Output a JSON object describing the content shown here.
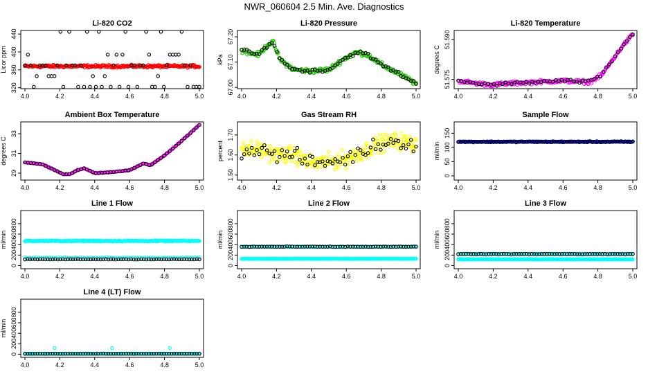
{
  "page_title": "NWR_060604  2.5 Min. Ave. Diagnostics",
  "colors": {
    "red": "#ff0000",
    "green": "#22cc00",
    "magenta": "#ff00ff",
    "yellow": "#ffff00",
    "blue": "#0000cc",
    "cyan": "#00ffff",
    "black": "#000000"
  },
  "chart_data": [
    {
      "type": "scatter",
      "title": "Li-820 CO2",
      "ylabel": "Licor ppm",
      "xlim": [
        4.0,
        5.0
      ],
      "ylim": [
        318,
        448
      ],
      "xticks": [
        "4.0",
        "4.2",
        "4.4",
        "4.6",
        "4.8",
        "5.0"
      ],
      "yticks": [
        {
          "v": 320,
          "label": "320"
        },
        {
          "v": 360,
          "label": "360"
        },
        {
          "v": 400,
          "label": "400"
        },
        {
          "v": 440,
          "label": "440"
        }
      ],
      "series": [
        {
          "name": "CO2 (red)",
          "color": "red",
          "gen": "band",
          "y": 368,
          "noise": 2.5,
          "n": 240
        },
        {
          "name": "CO2 (black)",
          "color": "black",
          "gen": "levels",
          "levels": [
            322,
            346,
            370,
            394,
            445
          ],
          "n": 60
        }
      ]
    },
    {
      "type": "scatter",
      "title": "Li-820 Pressure",
      "ylabel": "kPa",
      "xlim": [
        4.0,
        5.0
      ],
      "ylim": [
        66.995,
        67.225
      ],
      "xticks": [
        "4.0",
        "4.2",
        "4.4",
        "4.6",
        "4.8",
        "5.0"
      ],
      "yticks": [
        {
          "v": 67.0,
          "label": "67.00"
        },
        {
          "v": 67.1,
          "label": "67.10"
        },
        {
          "v": 67.2,
          "label": "67.20"
        }
      ],
      "series": [
        {
          "name": "Pressure (green)",
          "color": "green",
          "gen": "curve",
          "noise": 0.008,
          "n": 220,
          "knots": [
            [
              4.0,
              67.15
            ],
            [
              4.05,
              67.135
            ],
            [
              4.1,
              67.13
            ],
            [
              4.15,
              67.17
            ],
            [
              4.18,
              67.18
            ],
            [
              4.22,
              67.11
            ],
            [
              4.3,
              67.07
            ],
            [
              4.4,
              67.065
            ],
            [
              4.5,
              67.07
            ],
            [
              4.58,
              67.11
            ],
            [
              4.66,
              67.14
            ],
            [
              4.72,
              67.13
            ],
            [
              4.8,
              67.09
            ],
            [
              4.9,
              67.055
            ],
            [
              5.0,
              67.015
            ]
          ]
        },
        {
          "name": "Pressure (black)",
          "color": "black",
          "gen": "curve",
          "noise": 0.006,
          "n": 70,
          "knots": [
            [
              4.0,
              67.15
            ],
            [
              4.05,
              67.135
            ],
            [
              4.1,
              67.13
            ],
            [
              4.15,
              67.17
            ],
            [
              4.18,
              67.18
            ],
            [
              4.22,
              67.11
            ],
            [
              4.3,
              67.07
            ],
            [
              4.4,
              67.065
            ],
            [
              4.5,
              67.07
            ],
            [
              4.58,
              67.11
            ],
            [
              4.66,
              67.14
            ],
            [
              4.72,
              67.13
            ],
            [
              4.8,
              67.09
            ],
            [
              4.9,
              67.055
            ],
            [
              5.0,
              67.015
            ]
          ]
        }
      ]
    },
    {
      "type": "scatter",
      "title": "Li-820 Temperature",
      "ylabel": "degrees C",
      "xlim": [
        4.0,
        5.0
      ],
      "ylim": [
        51.5715,
        51.5935
      ],
      "xticks": [
        "4.0",
        "4.2",
        "4.4",
        "4.6",
        "4.8",
        "5.0"
      ],
      "yticks": [
        {
          "v": 51.575,
          "label": "51.575"
        },
        {
          "v": 51.59,
          "label": "51.590"
        }
      ],
      "series": [
        {
          "name": "Temperature (magenta)",
          "color": "magenta",
          "gen": "curve",
          "noise": 0.0006,
          "n": 220,
          "knots": [
            [
              4.0,
              51.5745
            ],
            [
              4.1,
              51.5735
            ],
            [
              4.2,
              51.573
            ],
            [
              4.3,
              51.5735
            ],
            [
              4.45,
              51.574
            ],
            [
              4.6,
              51.5745
            ],
            [
              4.75,
              51.574
            ],
            [
              4.82,
              51.5765
            ],
            [
              4.88,
              51.582
            ],
            [
              4.94,
              51.5875
            ],
            [
              5.0,
              51.592
            ]
          ]
        },
        {
          "name": "Temperature (black)",
          "color": "black",
          "gen": "curve",
          "noise": 0.0005,
          "n": 60,
          "knots": [
            [
              4.0,
              51.5745
            ],
            [
              4.1,
              51.5735
            ],
            [
              4.2,
              51.573
            ],
            [
              4.3,
              51.5735
            ],
            [
              4.45,
              51.574
            ],
            [
              4.6,
              51.5745
            ],
            [
              4.75,
              51.574
            ],
            [
              4.82,
              51.5765
            ],
            [
              4.88,
              51.582
            ],
            [
              4.94,
              51.5875
            ],
            [
              5.0,
              51.592
            ]
          ]
        }
      ]
    },
    {
      "type": "scatter",
      "title": "Ambient Box Temperature",
      "ylabel": "degrees C",
      "xlim": [
        4.0,
        5.0
      ],
      "ylim": [
        28.3,
        34.2
      ],
      "xticks": [
        "4.0",
        "4.2",
        "4.4",
        "4.6",
        "4.8",
        "5.0"
      ],
      "yticks": [
        {
          "v": 29,
          "label": "29"
        },
        {
          "v": 31,
          "label": "31"
        },
        {
          "v": 33,
          "label": "33"
        }
      ],
      "series": [
        {
          "name": "Ambient (magenta)",
          "color": "magenta",
          "gen": "curve",
          "noise": 0.03,
          "n": 180,
          "knots": [
            [
              4.0,
              30.1
            ],
            [
              4.05,
              30.0
            ],
            [
              4.1,
              29.9
            ],
            [
              4.16,
              29.4
            ],
            [
              4.22,
              28.9
            ],
            [
              4.26,
              28.9
            ],
            [
              4.3,
              29.3
            ],
            [
              4.34,
              29.5
            ],
            [
              4.4,
              29.0
            ],
            [
              4.5,
              29.1
            ],
            [
              4.6,
              29.3
            ],
            [
              4.68,
              30.0
            ],
            [
              4.72,
              29.8
            ],
            [
              4.8,
              30.8
            ],
            [
              4.9,
              32.3
            ],
            [
              5.0,
              33.9
            ]
          ]
        },
        {
          "name": "Ambient (black)",
          "color": "black",
          "gen": "curve",
          "noise": 0.02,
          "n": 60,
          "knots": [
            [
              4.0,
              30.1
            ],
            [
              4.05,
              30.0
            ],
            [
              4.1,
              29.9
            ],
            [
              4.16,
              29.4
            ],
            [
              4.22,
              28.9
            ],
            [
              4.26,
              28.9
            ],
            [
              4.3,
              29.3
            ],
            [
              4.34,
              29.5
            ],
            [
              4.4,
              29.0
            ],
            [
              4.5,
              29.1
            ],
            [
              4.6,
              29.3
            ],
            [
              4.68,
              30.0
            ],
            [
              4.72,
              29.8
            ],
            [
              4.8,
              30.8
            ],
            [
              4.9,
              32.3
            ],
            [
              5.0,
              33.9
            ]
          ]
        }
      ]
    },
    {
      "type": "scatter",
      "title": "Gas Stream RH",
      "ylabel": "percent",
      "xlim": [
        4.0,
        5.0
      ],
      "ylim": [
        1.475,
        1.765
      ],
      "xticks": [
        "4.0",
        "4.2",
        "4.4",
        "4.6",
        "4.8",
        "5.0"
      ],
      "yticks": [
        {
          "v": 1.5,
          "label": "1.50"
        },
        {
          "v": 1.6,
          "label": "1.60"
        },
        {
          "v": 1.7,
          "label": "1.70"
        }
      ],
      "series": [
        {
          "name": "RH (yellow)",
          "color": "yellow",
          "gen": "curve",
          "noise": 0.035,
          "n": 300,
          "knots": [
            [
              4.0,
              1.62
            ],
            [
              4.1,
              1.63
            ],
            [
              4.2,
              1.6
            ],
            [
              4.3,
              1.6
            ],
            [
              4.4,
              1.56
            ],
            [
              4.5,
              1.565
            ],
            [
              4.6,
              1.58
            ],
            [
              4.7,
              1.62
            ],
            [
              4.8,
              1.66
            ],
            [
              4.9,
              1.67
            ],
            [
              5.0,
              1.65
            ]
          ]
        },
        {
          "name": "RH (black)",
          "color": "black",
          "gen": "curve",
          "noise": 0.03,
          "n": 70,
          "knots": [
            [
              4.0,
              1.62
            ],
            [
              4.1,
              1.63
            ],
            [
              4.2,
              1.6
            ],
            [
              4.3,
              1.6
            ],
            [
              4.4,
              1.56
            ],
            [
              4.5,
              1.565
            ],
            [
              4.6,
              1.58
            ],
            [
              4.7,
              1.62
            ],
            [
              4.8,
              1.66
            ],
            [
              4.9,
              1.67
            ],
            [
              5.0,
              1.65
            ]
          ]
        }
      ]
    },
    {
      "type": "scatter",
      "title": "Sample Flow",
      "ylabel": "ml/min",
      "xlim": [
        4.0,
        5.0
      ],
      "ylim": [
        -15,
        190
      ],
      "xticks": [
        "4.0",
        "4.2",
        "4.4",
        "4.6",
        "4.8",
        "5.0"
      ],
      "yticks": [
        {
          "v": 0,
          "label": "0"
        },
        {
          "v": 50,
          "label": "50"
        },
        {
          "v": 100,
          "label": "100"
        },
        {
          "v": 150,
          "label": "150"
        }
      ],
      "series": [
        {
          "name": "Sample flow (blue)",
          "color": "blue",
          "gen": "band",
          "y": 120,
          "noise": 1.5,
          "n": 200
        },
        {
          "name": "Sample flow (black)",
          "color": "black",
          "gen": "band",
          "y": 120,
          "noise": 1,
          "n": 70
        }
      ]
    },
    {
      "type": "scatter",
      "title": "Line 1 Flow",
      "ylabel": "ml/min",
      "xlim": [
        4.0,
        5.0
      ],
      "ylim": [
        -60,
        1050
      ],
      "xticks": [
        "4.0",
        "4.2",
        "4.4",
        "4.6",
        "4.8",
        "5.0"
      ],
      "yticks": [
        {
          "v": 0,
          "label": "0"
        },
        {
          "v": 200,
          "label": "200"
        },
        {
          "v": 400,
          "label": "400"
        },
        {
          "v": 600,
          "label": "600"
        },
        {
          "v": 800,
          "label": "800"
        }
      ],
      "series": [
        {
          "name": "Line 1 (cyan high)",
          "color": "cyan",
          "gen": "band",
          "y": 470,
          "noise": 8,
          "n": 260
        },
        {
          "name": "Line 1 (cyan low)",
          "color": "cyan",
          "gen": "band",
          "y": 150,
          "noise": 5,
          "n": 80
        },
        {
          "name": "Line 1 (black)",
          "color": "black",
          "gen": "band",
          "y": 120,
          "noise": 3,
          "n": 70
        }
      ]
    },
    {
      "type": "scatter",
      "title": "Line 2 Flow",
      "ylabel": "ml/min",
      "xlim": [
        4.0,
        5.0
      ],
      "ylim": [
        -60,
        1050
      ],
      "xticks": [
        "4.0",
        "4.2",
        "4.4",
        "4.6",
        "4.8",
        "5.0"
      ],
      "yticks": [
        {
          "v": 0,
          "label": "0"
        },
        {
          "v": 200,
          "label": "200"
        },
        {
          "v": 400,
          "label": "400"
        },
        {
          "v": 600,
          "label": "600"
        },
        {
          "v": 800,
          "label": "800"
        }
      ],
      "series": [
        {
          "name": "Line 2 (cyan high)",
          "color": "cyan",
          "gen": "band",
          "y": 360,
          "noise": 5,
          "n": 120
        },
        {
          "name": "Line 2 (cyan low)",
          "color": "cyan",
          "gen": "band",
          "y": 130,
          "noise": 4,
          "n": 220
        },
        {
          "name": "Line 2 (black)",
          "color": "black",
          "gen": "band",
          "y": 360,
          "noise": 4,
          "n": 70
        }
      ]
    },
    {
      "type": "scatter",
      "title": "Line 3 Flow",
      "ylabel": "ml/min",
      "xlim": [
        4.0,
        5.0
      ],
      "ylim": [
        -60,
        1050
      ],
      "xticks": [
        "4.0",
        "4.2",
        "4.4",
        "4.6",
        "4.8",
        "5.0"
      ],
      "yticks": [
        {
          "v": 0,
          "label": "0"
        },
        {
          "v": 200,
          "label": "200"
        },
        {
          "v": 400,
          "label": "400"
        },
        {
          "v": 600,
          "label": "600"
        },
        {
          "v": 800,
          "label": "800"
        }
      ],
      "series": [
        {
          "name": "Line 3 (cyan high)",
          "color": "cyan",
          "gen": "band",
          "y": 220,
          "noise": 4,
          "n": 100
        },
        {
          "name": "Line 3 (cyan low)",
          "color": "cyan",
          "gen": "band",
          "y": 120,
          "noise": 4,
          "n": 220
        },
        {
          "name": "Line 3 (black)",
          "color": "black",
          "gen": "band",
          "y": 220,
          "noise": 3,
          "n": 70
        }
      ]
    },
    {
      "type": "scatter",
      "title": "Line 4 (LT) Flow",
      "ylabel": "ml/min",
      "xlim": [
        4.0,
        5.0
      ],
      "ylim": [
        -60,
        1050
      ],
      "xticks": [
        "4.0",
        "4.2",
        "4.4",
        "4.6",
        "4.8",
        "5.0"
      ],
      "yticks": [
        {
          "v": 0,
          "label": "0"
        },
        {
          "v": 200,
          "label": "200"
        },
        {
          "v": 400,
          "label": "400"
        },
        {
          "v": 600,
          "label": "600"
        },
        {
          "v": 800,
          "label": "800"
        }
      ],
      "series": [
        {
          "name": "Line 4 (cyan)",
          "color": "cyan",
          "gen": "band",
          "y": 10,
          "noise": 2,
          "n": 220
        },
        {
          "name": "Line 4 (cyan spikes)",
          "color": "cyan",
          "gen": "points",
          "points": [
            [
              4.17,
              120
            ],
            [
              4.5,
              120
            ],
            [
              4.83,
              120
            ]
          ]
        },
        {
          "name": "Line 4 (black)",
          "color": "black",
          "gen": "band",
          "y": 10,
          "noise": 1.5,
          "n": 70
        }
      ]
    }
  ]
}
